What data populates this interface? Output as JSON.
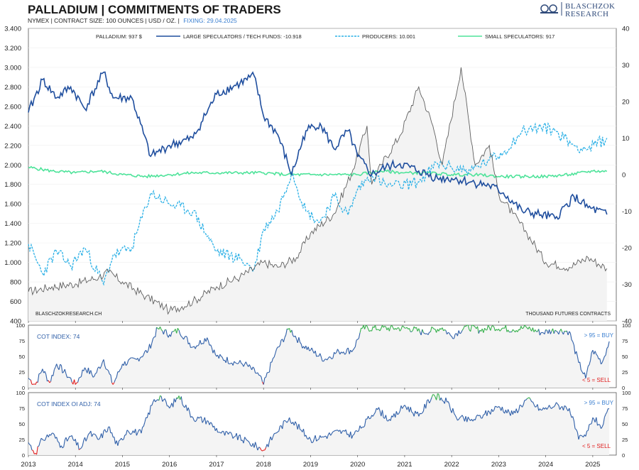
{
  "header": {
    "title": "PALLADIUM  |  COMMITMENTS OF TRADERS",
    "subtitle_main": "NYMEX | CONTRACT SIZE: 100 OUNCES | USD / OZ. |",
    "subtitle_fixing": "FIXING: 29.04.2025"
  },
  "logo": {
    "line1": "BLASCHZOK",
    "line2": "RESEARCH",
    "icon": "bull-bear-logo-icon"
  },
  "colors": {
    "price": "#606060",
    "large_specs": "#1f4e9e",
    "producers": "#2bb0e6",
    "small_specs": "#4ee39a",
    "buy_zone": "#35b04a",
    "sell_zone": "#e02020",
    "index_line": "#2f5fa8"
  },
  "chart_data": [
    {
      "type": "line",
      "panel": "main",
      "x_years": [
        "2013",
        "2014",
        "2015",
        "2016",
        "2017",
        "2018",
        "2019",
        "2020",
        "2021",
        "2022",
        "2023",
        "2024",
        "2025"
      ],
      "y_left_label": "",
      "y_right_label": "",
      "y_left_ticks": [
        "400",
        "600",
        "800",
        "1.000",
        "1.200",
        "1.400",
        "1.600",
        "1.800",
        "2.000",
        "2.200",
        "2.400",
        "2.600",
        "2.800",
        "3.000",
        "3.200",
        "3.400"
      ],
      "y_right_ticks": [
        "-40",
        "-30",
        "-20",
        "-10",
        "0",
        "10",
        "20",
        "30",
        "40"
      ],
      "ylim_left": [
        400,
        3400
      ],
      "ylim_right": [
        -40,
        40
      ],
      "legend": [
        "PALLADIUM: 937 $",
        "LARGE SPECULATORS / TECH FUNDS: -10.918",
        "PRODUCERS: 10.001",
        "SMALL SPECULATORS: 917"
      ],
      "annotations": {
        "source": "BLASCHZOKRESEARCH.CH",
        "unit": "THOUSAND  FUTURES CONTRACTS"
      },
      "series": [
        {
          "name": "PALLADIUM: 937 $",
          "axis": "left",
          "points": [
            [
              2013.0,
              700
            ],
            [
              2013.5,
              750
            ],
            [
              2014.0,
              780
            ],
            [
              2014.5,
              850
            ],
            [
              2014.7,
              900
            ],
            [
              2015.0,
              800
            ],
            [
              2015.5,
              650
            ],
            [
              2015.9,
              540
            ],
            [
              2016.0,
              500
            ],
            [
              2016.5,
              600
            ],
            [
              2017.0,
              750
            ],
            [
              2017.5,
              850
            ],
            [
              2018.0,
              1000
            ],
            [
              2018.3,
              950
            ],
            [
              2018.7,
              1050
            ],
            [
              2019.0,
              1300
            ],
            [
              2019.5,
              1500
            ],
            [
              2019.9,
              1950
            ],
            [
              2020.2,
              2400
            ],
            [
              2020.3,
              1800
            ],
            [
              2020.5,
              2000
            ],
            [
              2020.9,
              2300
            ],
            [
              2021.3,
              2800
            ],
            [
              2021.6,
              2400
            ],
            [
              2021.8,
              2000
            ],
            [
              2022.2,
              3000
            ],
            [
              2022.5,
              2000
            ],
            [
              2022.8,
              2200
            ],
            [
              2023.0,
              1700
            ],
            [
              2023.3,
              1500
            ],
            [
              2023.6,
              1300
            ],
            [
              2024.0,
              1000
            ],
            [
              2024.5,
              950
            ],
            [
              2024.9,
              1050
            ],
            [
              2025.3,
              937
            ]
          ]
        },
        {
          "name": "LARGE SPECULATORS / TECH FUNDS: -10.918",
          "axis": "right",
          "points": [
            [
              2013.0,
              17
            ],
            [
              2013.3,
              26
            ],
            [
              2013.6,
              21
            ],
            [
              2013.9,
              24
            ],
            [
              2014.2,
              18
            ],
            [
              2014.6,
              28
            ],
            [
              2014.8,
              21
            ],
            [
              2015.2,
              21
            ],
            [
              2015.6,
              5
            ],
            [
              2016.0,
              8
            ],
            [
              2016.5,
              10
            ],
            [
              2017.0,
              22
            ],
            [
              2017.5,
              25
            ],
            [
              2017.8,
              27
            ],
            [
              2018.0,
              16
            ],
            [
              2018.3,
              11
            ],
            [
              2018.6,
              0
            ],
            [
              2018.9,
              12
            ],
            [
              2019.2,
              14
            ],
            [
              2019.5,
              7
            ],
            [
              2019.8,
              12
            ],
            [
              2020.0,
              5
            ],
            [
              2020.3,
              0
            ],
            [
              2020.6,
              2
            ],
            [
              2020.9,
              3
            ],
            [
              2021.3,
              1
            ],
            [
              2021.7,
              -1
            ],
            [
              2022.0,
              -1
            ],
            [
              2022.4,
              -2
            ],
            [
              2022.8,
              -3
            ],
            [
              2023.1,
              -5
            ],
            [
              2023.5,
              -10
            ],
            [
              2023.9,
              -11
            ],
            [
              2024.2,
              -12
            ],
            [
              2024.6,
              -6
            ],
            [
              2024.9,
              -9
            ],
            [
              2025.3,
              -10.9
            ]
          ]
        },
        {
          "name": "PRODUCERS: 10.001",
          "axis": "right",
          "points": [
            [
              2013.0,
              -19
            ],
            [
              2013.3,
              -27
            ],
            [
              2013.6,
              -21
            ],
            [
              2013.9,
              -25
            ],
            [
              2014.2,
              -20
            ],
            [
              2014.6,
              -30
            ],
            [
              2014.8,
              -22
            ],
            [
              2015.2,
              -20
            ],
            [
              2015.6,
              -5
            ],
            [
              2016.0,
              -8
            ],
            [
              2016.5,
              -10
            ],
            [
              2017.0,
              -21
            ],
            [
              2017.5,
              -23
            ],
            [
              2017.8,
              -26
            ],
            [
              2018.0,
              -15
            ],
            [
              2018.3,
              -10
            ],
            [
              2018.6,
              1
            ],
            [
              2018.9,
              -10
            ],
            [
              2019.2,
              -13
            ],
            [
              2019.5,
              -6
            ],
            [
              2019.8,
              -11
            ],
            [
              2020.0,
              -4
            ],
            [
              2020.3,
              0
            ],
            [
              2020.6,
              -3
            ],
            [
              2020.9,
              -3
            ],
            [
              2021.3,
              -2
            ],
            [
              2021.7,
              3
            ],
            [
              2022.0,
              2
            ],
            [
              2022.4,
              1
            ],
            [
              2022.8,
              4
            ],
            [
              2023.1,
              6
            ],
            [
              2023.5,
              12
            ],
            [
              2023.9,
              13
            ],
            [
              2024.2,
              12
            ],
            [
              2024.6,
              8
            ],
            [
              2024.9,
              7
            ],
            [
              2025.3,
              10
            ]
          ]
        },
        {
          "name": "SMALL SPECULATORS: 917",
          "axis": "right",
          "points": [
            [
              2013.0,
              2
            ],
            [
              2013.5,
              1
            ],
            [
              2014.0,
              0.5
            ],
            [
              2014.5,
              1
            ],
            [
              2015.0,
              0
            ],
            [
              2015.5,
              -0.5
            ],
            [
              2016.0,
              0
            ],
            [
              2016.5,
              0.5
            ],
            [
              2017.0,
              0.5
            ],
            [
              2017.5,
              0.5
            ],
            [
              2018.0,
              0.5
            ],
            [
              2018.5,
              0
            ],
            [
              2019.0,
              0
            ],
            [
              2019.5,
              0
            ],
            [
              2020.0,
              0
            ],
            [
              2020.5,
              1
            ],
            [
              2021.0,
              0.5
            ],
            [
              2021.5,
              0.5
            ],
            [
              2022.0,
              0
            ],
            [
              2022.5,
              0
            ],
            [
              2023.0,
              -0.5
            ],
            [
              2023.5,
              -0.5
            ],
            [
              2024.0,
              -0.5
            ],
            [
              2024.5,
              0
            ],
            [
              2025.0,
              1
            ],
            [
              2025.3,
              0.9
            ]
          ]
        }
      ]
    },
    {
      "type": "line",
      "panel": "cot_index",
      "label": "COT INDEX: 74",
      "buy_label": "> 95 = BUY",
      "sell_label": "< 5 = SELL",
      "y_ticks": [
        "0",
        "25",
        "50",
        "75",
        "100"
      ],
      "ylim": [
        0,
        100
      ],
      "points": [
        [
          2013.0,
          15
        ],
        [
          2013.15,
          5
        ],
        [
          2013.3,
          30
        ],
        [
          2013.45,
          8
        ],
        [
          2013.6,
          38
        ],
        [
          2013.8,
          22
        ],
        [
          2014.0,
          5
        ],
        [
          2014.2,
          32
        ],
        [
          2014.4,
          18
        ],
        [
          2014.6,
          45
        ],
        [
          2014.8,
          5
        ],
        [
          2015.0,
          38
        ],
        [
          2015.3,
          45
        ],
        [
          2015.55,
          60
        ],
        [
          2015.75,
          95
        ],
        [
          2016.0,
          85
        ],
        [
          2016.2,
          92
        ],
        [
          2016.5,
          65
        ],
        [
          2016.8,
          80
        ],
        [
          2017.0,
          50
        ],
        [
          2017.4,
          40
        ],
        [
          2017.6,
          38
        ],
        [
          2017.9,
          20
        ],
        [
          2018.0,
          5
        ],
        [
          2018.25,
          55
        ],
        [
          2018.55,
          95
        ],
        [
          2018.8,
          70
        ],
        [
          2019.0,
          60
        ],
        [
          2019.3,
          45
        ],
        [
          2019.6,
          58
        ],
        [
          2019.9,
          60
        ],
        [
          2020.1,
          95
        ],
        [
          2020.5,
          95
        ],
        [
          2020.8,
          95
        ],
        [
          2021.1,
          95
        ],
        [
          2021.4,
          88
        ],
        [
          2021.8,
          96
        ],
        [
          2022.0,
          82
        ],
        [
          2022.3,
          98
        ],
        [
          2022.6,
          92
        ],
        [
          2022.9,
          97
        ],
        [
          2023.3,
          93
        ],
        [
          2023.6,
          96
        ],
        [
          2023.9,
          88
        ],
        [
          2024.2,
          92
        ],
        [
          2024.5,
          90
        ],
        [
          2024.7,
          40
        ],
        [
          2024.85,
          15
        ],
        [
          2025.0,
          60
        ],
        [
          2025.2,
          40
        ],
        [
          2025.35,
          74
        ]
      ]
    },
    {
      "type": "line",
      "panel": "cot_index_oi_adj",
      "label": "COT INDEX OI ADJ: 74",
      "buy_label": "> 95 = BUY",
      "sell_label": "< 5 = SELL",
      "y_ticks": [
        "0",
        "25",
        "50",
        "75",
        "100"
      ],
      "ylim": [
        0,
        100
      ],
      "points": [
        [
          2013.0,
          20
        ],
        [
          2013.15,
          3
        ],
        [
          2013.3,
          25
        ],
        [
          2013.5,
          35
        ],
        [
          2013.7,
          15
        ],
        [
          2013.9,
          30
        ],
        [
          2014.1,
          10
        ],
        [
          2014.3,
          35
        ],
        [
          2014.5,
          25
        ],
        [
          2014.7,
          45
        ],
        [
          2014.9,
          15
        ],
        [
          2015.1,
          40
        ],
        [
          2015.4,
          35
        ],
        [
          2015.65,
          85
        ],
        [
          2015.8,
          95
        ],
        [
          2016.0,
          75
        ],
        [
          2016.2,
          95
        ],
        [
          2016.5,
          60
        ],
        [
          2016.8,
          55
        ],
        [
          2017.1,
          35
        ],
        [
          2017.4,
          30
        ],
        [
          2017.7,
          20
        ],
        [
          2018.0,
          8
        ],
        [
          2018.25,
          35
        ],
        [
          2018.55,
          60
        ],
        [
          2018.8,
          40
        ],
        [
          2019.0,
          25
        ],
        [
          2019.3,
          30
        ],
        [
          2019.6,
          38
        ],
        [
          2019.9,
          32
        ],
        [
          2020.1,
          45
        ],
        [
          2020.4,
          75
        ],
        [
          2020.7,
          55
        ],
        [
          2021.0,
          80
        ],
        [
          2021.3,
          62
        ],
        [
          2021.6,
          97
        ],
        [
          2021.9,
          85
        ],
        [
          2022.1,
          60
        ],
        [
          2022.4,
          55
        ],
        [
          2022.7,
          65
        ],
        [
          2023.0,
          78
        ],
        [
          2023.3,
          65
        ],
        [
          2023.6,
          90
        ],
        [
          2023.9,
          72
        ],
        [
          2024.2,
          80
        ],
        [
          2024.5,
          75
        ],
        [
          2024.7,
          25
        ],
        [
          2024.85,
          30
        ],
        [
          2025.0,
          60
        ],
        [
          2025.2,
          45
        ],
        [
          2025.35,
          74
        ]
      ]
    }
  ]
}
